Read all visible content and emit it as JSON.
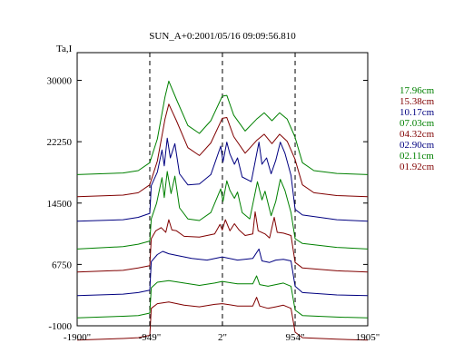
{
  "chart_data": {
    "type": "line",
    "title": "SUN_A+0:2001/05/16 09:09:56.810",
    "ylabel": "Ta,I",
    "xlabel": "",
    "xlim": [
      -1900,
      1905
    ],
    "ylim": [
      -1000,
      33500
    ],
    "x_ticks": [
      -1900,
      -949,
      2,
      954,
      1905
    ],
    "x_tick_labels": [
      "-1900\"",
      "-949\"",
      "2\"",
      "954\"",
      "1905\""
    ],
    "y_ticks": [
      -1000,
      6750,
      14500,
      22250,
      30000
    ],
    "y_tick_labels": [
      "-1000",
      "6750",
      "14500",
      "22250",
      "30000"
    ],
    "vlines": [
      -949,
      2,
      954
    ],
    "grid": false,
    "legend_position": "right",
    "series": [
      {
        "name": "17.96cm",
        "color": "#008000",
        "base": 18100,
        "shape": [
          [
            -1900,
            0
          ],
          [
            -1300,
            200
          ],
          [
            -1100,
            500
          ],
          [
            -950,
            1500
          ],
          [
            -850,
            4500
          ],
          [
            -750,
            9800
          ],
          [
            -700,
            11800
          ],
          [
            -600,
            9500
          ],
          [
            -450,
            6200
          ],
          [
            -300,
            5200
          ],
          [
            -150,
            6800
          ],
          [
            0,
            9900
          ],
          [
            60,
            10000
          ],
          [
            150,
            7500
          ],
          [
            300,
            5500
          ],
          [
            450,
            7000
          ],
          [
            550,
            7800
          ],
          [
            650,
            6800
          ],
          [
            750,
            7800
          ],
          [
            850,
            7000
          ],
          [
            950,
            4800
          ],
          [
            1050,
            1500
          ],
          [
            1200,
            500
          ],
          [
            1500,
            150
          ],
          [
            1905,
            0
          ]
        ]
      },
      {
        "name": "15.38cm",
        "color": "#800000",
        "base": 15300,
        "shape": [
          [
            -1900,
            0
          ],
          [
            -1300,
            200
          ],
          [
            -1100,
            500
          ],
          [
            -950,
            1500
          ],
          [
            -850,
            4500
          ],
          [
            -750,
            9800
          ],
          [
            -700,
            11700
          ],
          [
            -600,
            9600
          ],
          [
            -450,
            6200
          ],
          [
            -300,
            5200
          ],
          [
            -150,
            6800
          ],
          [
            0,
            9900
          ],
          [
            60,
            10000
          ],
          [
            150,
            7600
          ],
          [
            300,
            5500
          ],
          [
            450,
            7100
          ],
          [
            550,
            7900
          ],
          [
            650,
            6700
          ],
          [
            750,
            7900
          ],
          [
            850,
            7000
          ],
          [
            950,
            4800
          ],
          [
            1050,
            1500
          ],
          [
            1200,
            500
          ],
          [
            1500,
            150
          ],
          [
            1905,
            0
          ]
        ]
      },
      {
        "name": "10.17cm",
        "color": "#000080",
        "base": 12200,
        "shape": [
          [
            -1900,
            0
          ],
          [
            -1300,
            200
          ],
          [
            -1100,
            500
          ],
          [
            -949,
            1000
          ],
          [
            -930,
            4500
          ],
          [
            -850,
            6200
          ],
          [
            -790,
            9000
          ],
          [
            -760,
            7000
          ],
          [
            -720,
            10500
          ],
          [
            -680,
            8000
          ],
          [
            -620,
            9800
          ],
          [
            -560,
            6000
          ],
          [
            -450,
            4600
          ],
          [
            -300,
            4700
          ],
          [
            -150,
            5900
          ],
          [
            -20,
            9500
          ],
          [
            10,
            7500
          ],
          [
            60,
            10000
          ],
          [
            100,
            8500
          ],
          [
            160,
            7200
          ],
          [
            200,
            8000
          ],
          [
            260,
            5600
          ],
          [
            380,
            5000
          ],
          [
            480,
            10000
          ],
          [
            520,
            7200
          ],
          [
            580,
            8000
          ],
          [
            640,
            6000
          ],
          [
            700,
            7700
          ],
          [
            760,
            10000
          ],
          [
            820,
            8600
          ],
          [
            900,
            5800
          ],
          [
            954,
            1500
          ],
          [
            1050,
            800
          ],
          [
            1500,
            200
          ],
          [
            1905,
            0
          ]
        ]
      },
      {
        "name": "07.03cm",
        "color": "#008000",
        "base": 8700,
        "shape": [
          [
            -1900,
            0
          ],
          [
            -1300,
            300
          ],
          [
            -1100,
            600
          ],
          [
            -949,
            1000
          ],
          [
            -930,
            3800
          ],
          [
            -860,
            5800
          ],
          [
            -790,
            9000
          ],
          [
            -760,
            6500
          ],
          [
            -720,
            9800
          ],
          [
            -670,
            7000
          ],
          [
            -620,
            9200
          ],
          [
            -560,
            5200
          ],
          [
            -450,
            3800
          ],
          [
            -300,
            3600
          ],
          [
            -150,
            4600
          ],
          [
            -20,
            7600
          ],
          [
            10,
            6000
          ],
          [
            60,
            8600
          ],
          [
            100,
            7400
          ],
          [
            160,
            6400
          ],
          [
            200,
            7200
          ],
          [
            260,
            4600
          ],
          [
            360,
            3800
          ],
          [
            460,
            8500
          ],
          [
            520,
            6200
          ],
          [
            560,
            7300
          ],
          [
            640,
            4200
          ],
          [
            700,
            6000
          ],
          [
            760,
            8800
          ],
          [
            820,
            7400
          ],
          [
            900,
            4600
          ],
          [
            954,
            1300
          ],
          [
            1050,
            700
          ],
          [
            1500,
            200
          ],
          [
            1905,
            0
          ]
        ]
      },
      {
        "name": "04.32cm",
        "color": "#800000",
        "base": 5800,
        "shape": [
          [
            -1900,
            0
          ],
          [
            -1300,
            200
          ],
          [
            -1100,
            500
          ],
          [
            -949,
            800
          ],
          [
            -930,
            4200
          ],
          [
            -870,
            5200
          ],
          [
            -800,
            5600
          ],
          [
            -740,
            5000
          ],
          [
            -700,
            6600
          ],
          [
            -660,
            5300
          ],
          [
            -600,
            5200
          ],
          [
            -500,
            4500
          ],
          [
            -300,
            4400
          ],
          [
            -100,
            4800
          ],
          [
            -30,
            6000
          ],
          [
            0,
            5300
          ],
          [
            40,
            6600
          ],
          [
            100,
            5200
          ],
          [
            160,
            6100
          ],
          [
            220,
            5300
          ],
          [
            300,
            4600
          ],
          [
            400,
            4800
          ],
          [
            430,
            7600
          ],
          [
            470,
            5200
          ],
          [
            560,
            4800
          ],
          [
            620,
            4300
          ],
          [
            680,
            6900
          ],
          [
            720,
            5000
          ],
          [
            800,
            4900
          ],
          [
            900,
            4600
          ],
          [
            954,
            1200
          ],
          [
            1050,
            500
          ],
          [
            1500,
            150
          ],
          [
            1905,
            0
          ]
        ]
      },
      {
        "name": "02.90cm",
        "color": "#000080",
        "base": 2800,
        "shape": [
          [
            -1900,
            0
          ],
          [
            -1300,
            200
          ],
          [
            -1100,
            400
          ],
          [
            -949,
            700
          ],
          [
            -930,
            4300
          ],
          [
            -850,
            5200
          ],
          [
            -780,
            5600
          ],
          [
            -700,
            5300
          ],
          [
            -600,
            5100
          ],
          [
            -400,
            4700
          ],
          [
            -200,
            4500
          ],
          [
            0,
            4900
          ],
          [
            200,
            4500
          ],
          [
            400,
            4700
          ],
          [
            480,
            5900
          ],
          [
            520,
            4400
          ],
          [
            620,
            4200
          ],
          [
            700,
            4500
          ],
          [
            800,
            4600
          ],
          [
            900,
            4400
          ],
          [
            954,
            1200
          ],
          [
            1050,
            400
          ],
          [
            1500,
            100
          ],
          [
            1905,
            0
          ]
        ]
      },
      {
        "name": "02.11cm",
        "color": "#008000",
        "base": 0,
        "shape": [
          [
            -1900,
            0
          ],
          [
            -1300,
            200
          ],
          [
            -1100,
            300
          ],
          [
            -949,
            600
          ],
          [
            -930,
            3800
          ],
          [
            -850,
            4500
          ],
          [
            -700,
            4700
          ],
          [
            -500,
            4400
          ],
          [
            -300,
            4100
          ],
          [
            -100,
            4400
          ],
          [
            0,
            4600
          ],
          [
            200,
            4300
          ],
          [
            400,
            4300
          ],
          [
            450,
            5300
          ],
          [
            490,
            4200
          ],
          [
            600,
            4000
          ],
          [
            700,
            4200
          ],
          [
            800,
            4400
          ],
          [
            900,
            4000
          ],
          [
            954,
            1000
          ],
          [
            1050,
            300
          ],
          [
            1500,
            100
          ],
          [
            1905,
            0
          ]
        ]
      },
      {
        "name": "01.92cm",
        "color": "#800000",
        "base": -2800,
        "shape": [
          [
            -1900,
            0
          ],
          [
            -1300,
            200
          ],
          [
            -1100,
            300
          ],
          [
            -949,
            600
          ],
          [
            -930,
            4000
          ],
          [
            -850,
            4600
          ],
          [
            -700,
            4800
          ],
          [
            -500,
            4400
          ],
          [
            -300,
            4200
          ],
          [
            -100,
            4500
          ],
          [
            0,
            4600
          ],
          [
            200,
            4300
          ],
          [
            400,
            4300
          ],
          [
            450,
            5400
          ],
          [
            490,
            4300
          ],
          [
            600,
            4000
          ],
          [
            700,
            4200
          ],
          [
            800,
            4400
          ],
          [
            900,
            4000
          ],
          [
            954,
            1000
          ],
          [
            1050,
            300
          ],
          [
            1500,
            100
          ],
          [
            1905,
            0
          ]
        ]
      }
    ]
  }
}
